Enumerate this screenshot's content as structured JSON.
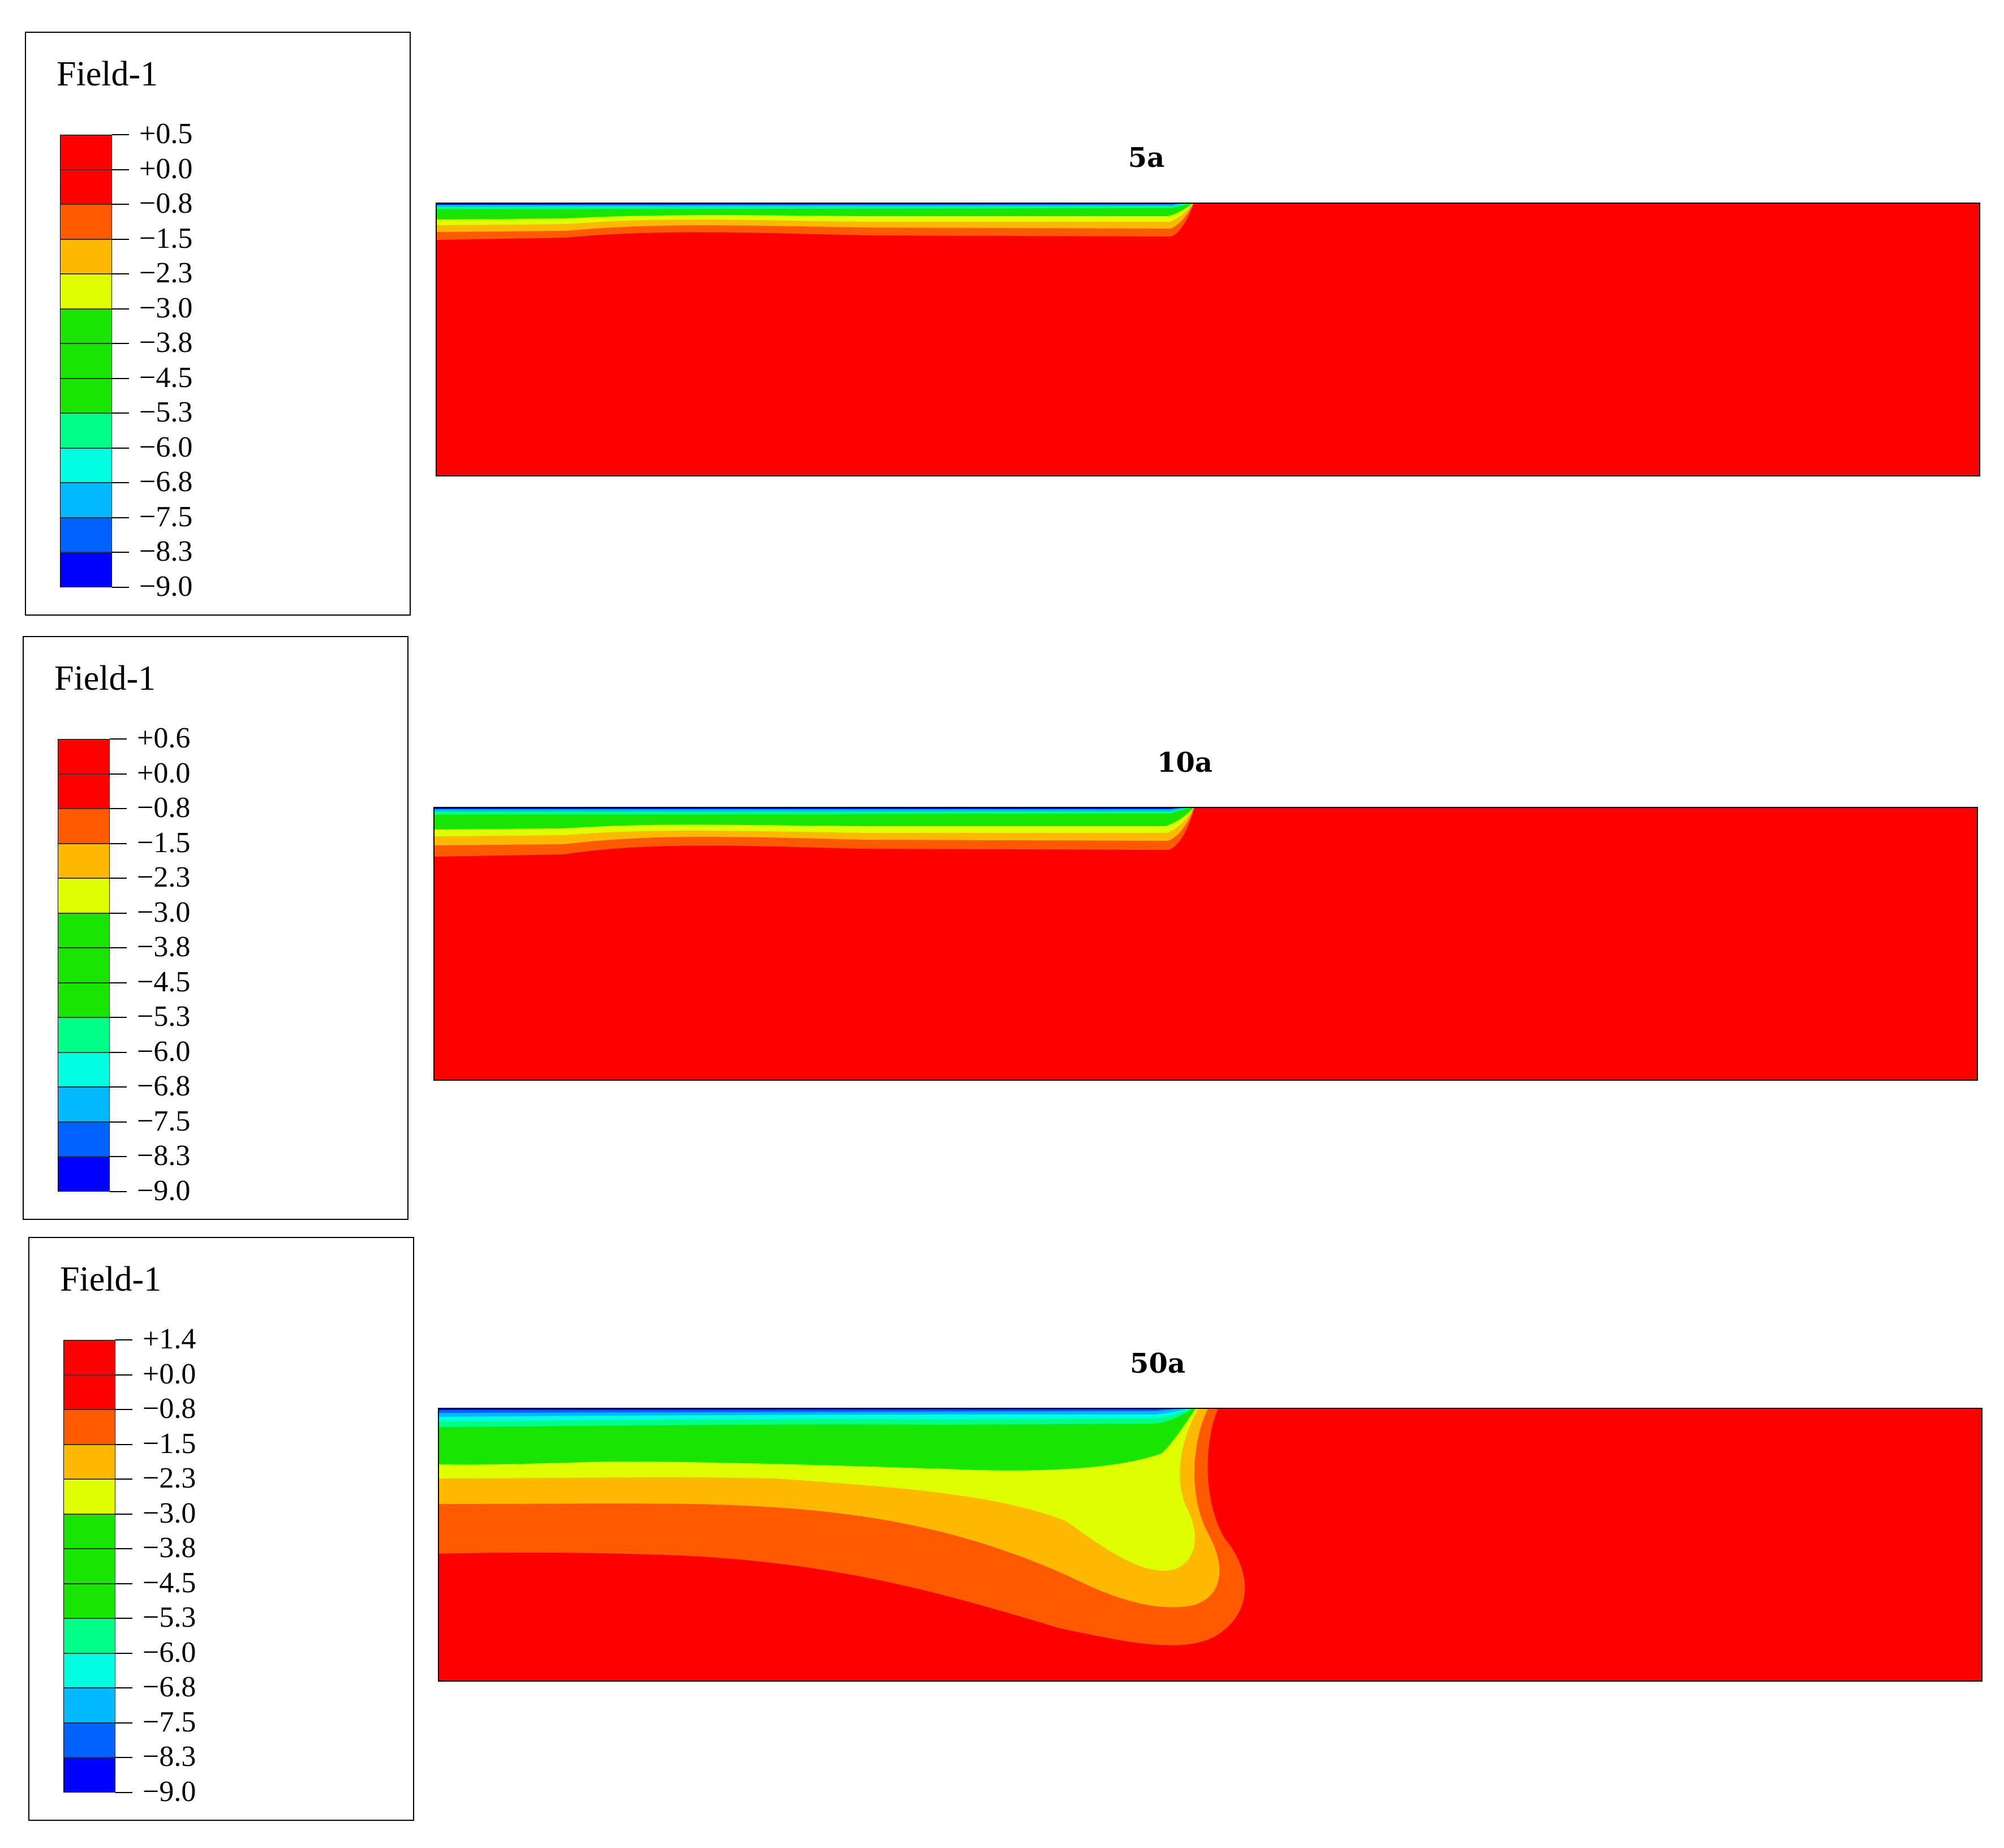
{
  "figure": {
    "panels": [
      {
        "id": "5a",
        "title": "5a",
        "legend": {
          "title": "Field-1",
          "labels": [
            "+0.5",
            "+0.0",
            "−0.8",
            "−1.5",
            "−2.3",
            "−3.0",
            "−3.8",
            "−4.5",
            "−5.3",
            "−6.0",
            "−6.8",
            "−7.5",
            "−8.3",
            "−9.0"
          ],
          "colors": [
            "#ff0000",
            "#ff0000",
            "#ff5a00",
            "#ffb900",
            "#dfff00",
            "#19e600",
            "#19e600",
            "#19e600",
            "#00ff87",
            "#00ffe1",
            "#00b9ff",
            "#0062ff",
            "#0000ff"
          ]
        }
      },
      {
        "id": "10a",
        "title": "10a",
        "legend": {
          "title": "Field-1",
          "labels": [
            "+0.6",
            "+0.0",
            "−0.8",
            "−1.5",
            "−2.3",
            "−3.0",
            "−3.8",
            "−4.5",
            "−5.3",
            "−6.0",
            "−6.8",
            "−7.5",
            "−8.3",
            "−9.0"
          ],
          "colors": [
            "#ff0000",
            "#ff0000",
            "#ff5a00",
            "#ffb900",
            "#dfff00",
            "#19e600",
            "#19e600",
            "#19e600",
            "#00ff87",
            "#00ffe1",
            "#00b9ff",
            "#0062ff",
            "#0000ff"
          ]
        }
      },
      {
        "id": "50a",
        "title": "50a",
        "legend": {
          "title": "Field-1",
          "labels": [
            "+1.4",
            "+0.0",
            "−0.8",
            "−1.5",
            "−2.3",
            "−3.0",
            "−3.8",
            "−4.5",
            "−5.3",
            "−6.0",
            "−6.8",
            "−7.5",
            "−8.3",
            "−9.0"
          ],
          "colors": [
            "#ff0000",
            "#ff0000",
            "#ff5a00",
            "#ffb900",
            "#dfff00",
            "#19e600",
            "#19e600",
            "#19e600",
            "#00ff87",
            "#00ffe1",
            "#00b9ff",
            "#0062ff",
            "#0000ff"
          ]
        }
      }
    ]
  }
}
